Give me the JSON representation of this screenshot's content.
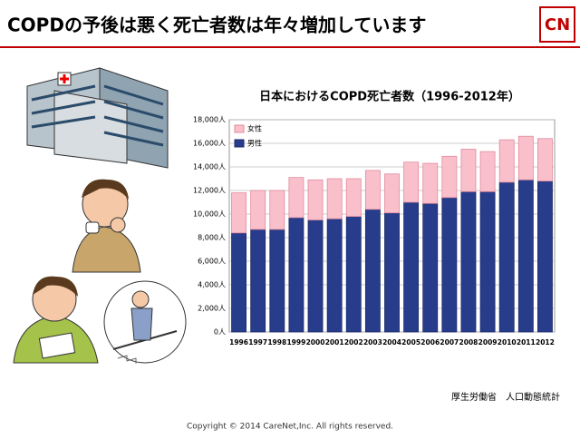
{
  "slide": {
    "title": "COPDの予後は悪く死亡者数は年々増加しています",
    "logo": "CN",
    "source": "厚生労働省　人口動態統計",
    "copyright": "Copyright © 2014 CareNet,Inc. All rights reserved."
  },
  "chart_data": {
    "type": "bar",
    "stacked": true,
    "title": "日本におけるCOPD死亡者数（1996-2012年）",
    "categories": [
      "1996",
      "1997",
      "1998",
      "1999",
      "2000",
      "2001",
      "2002",
      "2003",
      "2004",
      "2005",
      "2006",
      "2007",
      "2008",
      "2009",
      "2010",
      "2011",
      "2012"
    ],
    "series": [
      {
        "name": "男性",
        "color": "#283c8c",
        "values": [
          8400,
          8700,
          8700,
          9700,
          9500,
          9600,
          9800,
          10400,
          10100,
          11000,
          10900,
          11400,
          11900,
          11900,
          12700,
          12900,
          12800
        ]
      },
      {
        "name": "女性",
        "color": "#f9c0cc",
        "values": [
          3400,
          3300,
          3300,
          3400,
          3400,
          3400,
          3200,
          3300,
          3300,
          3400,
          3400,
          3500,
          3600,
          3400,
          3600,
          3700,
          3600
        ]
      }
    ],
    "ylim": [
      0,
      18000
    ],
    "yticks": [
      {
        "value": 0,
        "label": "0人"
      },
      {
        "value": 2000,
        "label": "2,000人"
      },
      {
        "value": 4000,
        "label": "4,000人"
      },
      {
        "value": 6000,
        "label": "6,000人"
      },
      {
        "value": 8000,
        "label": "8,000人"
      },
      {
        "value": 10000,
        "label": "10,000人"
      },
      {
        "value": 12000,
        "label": "12,000人"
      },
      {
        "value": 14000,
        "label": "14,000人"
      },
      {
        "value": 16000,
        "label": "16,000人"
      },
      {
        "value": 18000,
        "label": "18,000人"
      }
    ],
    "grid": true,
    "legend": "top-left"
  }
}
